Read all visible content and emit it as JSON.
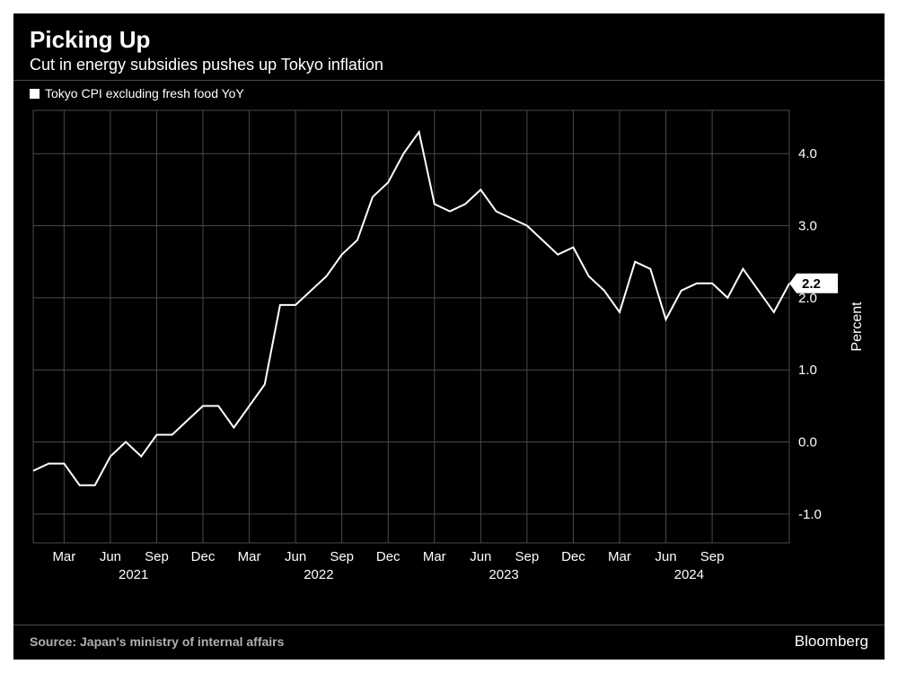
{
  "title": "Picking Up",
  "subtitle": "Cut in energy subsidies pushes up Tokyo inflation",
  "legend_label": "Tokyo CPI excluding fresh food YoY",
  "source": "Source: Japan's ministry of internal affairs",
  "brand": "Bloomberg",
  "chart": {
    "type": "line",
    "background": "#000000",
    "line_color": "#ffffff",
    "grid_color": "#4a4a4a",
    "text_color": "#ffffff",
    "muted_text_color": "#b0b0b0",
    "line_width": 2,
    "title_fontsize": 26,
    "subtitle_fontsize": 18,
    "axis_fontsize": 15,
    "y_axis_title": "Percent",
    "y_ticks": [
      -1.0,
      0.0,
      1.0,
      2.0,
      3.0,
      4.0
    ],
    "y_tick_labels": [
      "-1.0",
      "0.0",
      "1.0",
      "2.0",
      "3.0",
      "4.0"
    ],
    "ylim": [
      -1.4,
      4.6
    ],
    "x_ticks_months": [
      "Mar",
      "Jun",
      "Sep",
      "Dec",
      "Mar",
      "Jun",
      "Sep",
      "Dec",
      "Mar",
      "Jun",
      "Sep",
      "Dec",
      "Mar",
      "Jun",
      "Sep"
    ],
    "x_tick_indices": [
      2,
      5,
      8,
      11,
      14,
      17,
      20,
      23,
      26,
      29,
      32,
      35,
      38,
      41,
      44
    ],
    "x_year_labels": [
      {
        "year": "2021",
        "index": 6.5
      },
      {
        "year": "2022",
        "index": 18.5
      },
      {
        "year": "2023",
        "index": 30.5
      },
      {
        "year": "2024",
        "index": 42.5
      }
    ],
    "flag_value": "2.2",
    "values": [
      -0.4,
      -0.3,
      -0.3,
      -0.6,
      -0.6,
      -0.2,
      0.0,
      -0.2,
      0.1,
      0.1,
      0.3,
      0.5,
      0.5,
      0.2,
      0.5,
      0.8,
      1.9,
      1.9,
      2.1,
      2.3,
      2.6,
      2.8,
      3.4,
      3.6,
      4.0,
      4.3,
      3.3,
      3.2,
      3.3,
      3.5,
      3.2,
      3.1,
      3.0,
      2.8,
      2.6,
      2.7,
      2.3,
      2.1,
      1.8,
      2.5,
      2.4,
      1.7,
      2.1,
      2.2,
      2.2,
      2.0,
      2.4,
      2.1,
      1.8,
      2.2
    ],
    "n_points": 50
  }
}
